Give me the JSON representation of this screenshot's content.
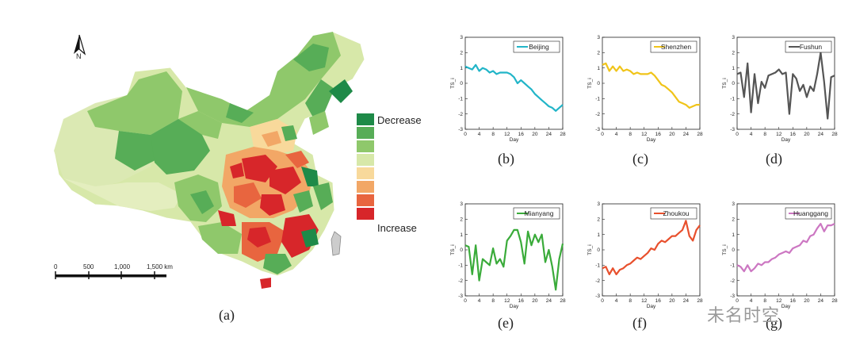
{
  "map": {
    "north_label": "N",
    "legend": {
      "decrease_label": "Decrease",
      "increase_label": "Increase",
      "colors": [
        "#1e8a48",
        "#57ad57",
        "#8fc86b",
        "#d7e8a9",
        "#f8d99b",
        "#f2a766",
        "#e8653f",
        "#d7262a"
      ]
    },
    "scale": {
      "labels": [
        "0",
        "500",
        "1,000",
        "1,500 km"
      ]
    },
    "caption": "(a)"
  },
  "chart_data": [
    {
      "type": "line",
      "city": "Beijing",
      "color": "#22b5c8",
      "caption": "(b)",
      "xlabel": "Day",
      "ylabel": "TS_i",
      "xticks": [
        0,
        4,
        8,
        12,
        16,
        20,
        24,
        28
      ],
      "yticks": [
        -3,
        -2,
        -1,
        0,
        1,
        2,
        3
      ],
      "xlim": [
        0,
        28
      ],
      "ylim": [
        -3,
        3
      ],
      "x": [
        0,
        1,
        2,
        3,
        4,
        5,
        6,
        7,
        8,
        9,
        10,
        11,
        12,
        13,
        14,
        15,
        16,
        17,
        18,
        19,
        20,
        21,
        22,
        23,
        24,
        25,
        26,
        27,
        28
      ],
      "values": [
        1.1,
        1.0,
        0.9,
        1.2,
        0.8,
        1.0,
        0.9,
        0.7,
        0.8,
        0.6,
        0.7,
        0.7,
        0.7,
        0.6,
        0.4,
        0.0,
        0.2,
        0.0,
        -0.2,
        -0.4,
        -0.7,
        -0.9,
        -1.1,
        -1.3,
        -1.5,
        -1.6,
        -1.8,
        -1.6,
        -1.4
      ]
    },
    {
      "type": "line",
      "city": "Shenzhen",
      "color": "#f0c419",
      "caption": "(c)",
      "xlabel": "Day",
      "ylabel": "TS_i",
      "xticks": [
        0,
        4,
        8,
        12,
        16,
        20,
        24,
        28
      ],
      "yticks": [
        -3,
        -2,
        -1,
        0,
        1,
        2,
        3
      ],
      "xlim": [
        0,
        28
      ],
      "ylim": [
        -3,
        3
      ],
      "x": [
        0,
        1,
        2,
        3,
        4,
        5,
        6,
        7,
        8,
        9,
        10,
        11,
        12,
        13,
        14,
        15,
        16,
        17,
        18,
        19,
        20,
        21,
        22,
        23,
        24,
        25,
        26,
        27,
        28
      ],
      "values": [
        1.2,
        1.3,
        0.8,
        1.1,
        0.8,
        1.1,
        0.8,
        0.9,
        0.8,
        0.6,
        0.7,
        0.6,
        0.6,
        0.6,
        0.7,
        0.5,
        0.2,
        -0.1,
        -0.2,
        -0.4,
        -0.6,
        -0.9,
        -1.2,
        -1.3,
        -1.4,
        -1.6,
        -1.5,
        -1.4,
        -1.4
      ]
    },
    {
      "type": "line",
      "city": "Fushun",
      "color": "#555555",
      "caption": "(d)",
      "xlabel": "Day",
      "ylabel": "TS_i",
      "xticks": [
        0,
        4,
        8,
        12,
        16,
        20,
        24,
        28
      ],
      "yticks": [
        -3,
        -2,
        -1,
        0,
        1,
        2,
        3
      ],
      "xlim": [
        0,
        28
      ],
      "ylim": [
        -3,
        3
      ],
      "x": [
        0,
        1,
        2,
        3,
        4,
        5,
        6,
        7,
        8,
        9,
        10,
        11,
        12,
        13,
        14,
        15,
        16,
        17,
        18,
        19,
        20,
        21,
        22,
        23,
        24,
        25,
        26,
        27,
        28
      ],
      "values": [
        0.6,
        0.7,
        -0.9,
        1.3,
        -1.9,
        0.6,
        -1.3,
        0.1,
        -0.3,
        0.5,
        0.6,
        0.7,
        0.9,
        0.6,
        0.7,
        -2.0,
        0.6,
        0.3,
        -0.5,
        -0.1,
        -0.9,
        -0.2,
        -0.5,
        0.6,
        2.0,
        0.1,
        -2.3,
        0.4,
        0.5
      ]
    },
    {
      "type": "line",
      "city": "Mianyang",
      "color": "#3aab3a",
      "caption": "(e)",
      "xlabel": "Day",
      "ylabel": "TS_i",
      "xticks": [
        0,
        4,
        8,
        12,
        16,
        20,
        24,
        28
      ],
      "yticks": [
        -3,
        -2,
        -1,
        0,
        1,
        2,
        3
      ],
      "xlim": [
        0,
        28
      ],
      "ylim": [
        -3,
        3
      ],
      "x": [
        0,
        1,
        2,
        3,
        4,
        5,
        6,
        7,
        8,
        9,
        10,
        11,
        12,
        13,
        14,
        15,
        16,
        17,
        18,
        19,
        20,
        21,
        22,
        23,
        24,
        25,
        26,
        27,
        28
      ],
      "values": [
        0.3,
        0.2,
        -1.6,
        0.3,
        -2.0,
        -0.6,
        -0.8,
        -1.0,
        0.1,
        -0.9,
        -0.6,
        -1.1,
        0.6,
        0.9,
        1.3,
        1.3,
        0.5,
        -0.9,
        1.2,
        0.3,
        1.0,
        0.5,
        1.0,
        -0.8,
        0.0,
        -1.1,
        -2.6,
        -0.6,
        0.4
      ]
    },
    {
      "type": "line",
      "city": "Zhoukou",
      "color": "#e8502d",
      "caption": "(f)",
      "xlabel": "Day",
      "ylabel": "TS_i",
      "xticks": [
        0,
        4,
        8,
        12,
        16,
        20,
        24,
        28
      ],
      "yticks": [
        -3,
        -2,
        -1,
        0,
        1,
        2,
        3
      ],
      "xlim": [
        0,
        28
      ],
      "ylim": [
        -3,
        3
      ],
      "x": [
        0,
        1,
        2,
        3,
        4,
        5,
        6,
        7,
        8,
        9,
        10,
        11,
        12,
        13,
        14,
        15,
        16,
        17,
        18,
        19,
        20,
        21,
        22,
        23,
        24,
        25,
        26,
        27,
        28
      ],
      "values": [
        -1.2,
        -1.1,
        -1.6,
        -1.2,
        -1.6,
        -1.3,
        -1.2,
        -1.0,
        -0.9,
        -0.7,
        -0.5,
        -0.6,
        -0.4,
        -0.2,
        0.1,
        0.0,
        0.4,
        0.6,
        0.5,
        0.7,
        0.9,
        0.9,
        1.1,
        1.3,
        1.9,
        0.9,
        0.6,
        1.3,
        1.6
      ]
    },
    {
      "type": "line",
      "city": "Huanggang",
      "color": "#cc77c2",
      "caption": "(g)",
      "xlabel": "Day",
      "ylabel": "TS_i",
      "xticks": [
        0,
        4,
        8,
        12,
        16,
        20,
        24,
        28
      ],
      "yticks": [
        -3,
        -2,
        -1,
        0,
        1,
        2,
        3
      ],
      "xlim": [
        0,
        28
      ],
      "ylim": [
        -3,
        3
      ],
      "x": [
        0,
        1,
        2,
        3,
        4,
        5,
        6,
        7,
        8,
        9,
        10,
        11,
        12,
        13,
        14,
        15,
        16,
        17,
        18,
        19,
        20,
        21,
        22,
        23,
        24,
        25,
        26,
        27,
        28
      ],
      "values": [
        -1.0,
        -1.1,
        -1.4,
        -1.0,
        -1.4,
        -1.2,
        -0.9,
        -1.0,
        -0.8,
        -0.8,
        -0.6,
        -0.5,
        -0.3,
        -0.2,
        -0.1,
        -0.2,
        0.1,
        0.2,
        0.3,
        0.6,
        0.5,
        0.9,
        1.0,
        1.4,
        1.7,
        1.2,
        1.6,
        1.6,
        1.7
      ]
    }
  ],
  "watermark": "未名时空"
}
